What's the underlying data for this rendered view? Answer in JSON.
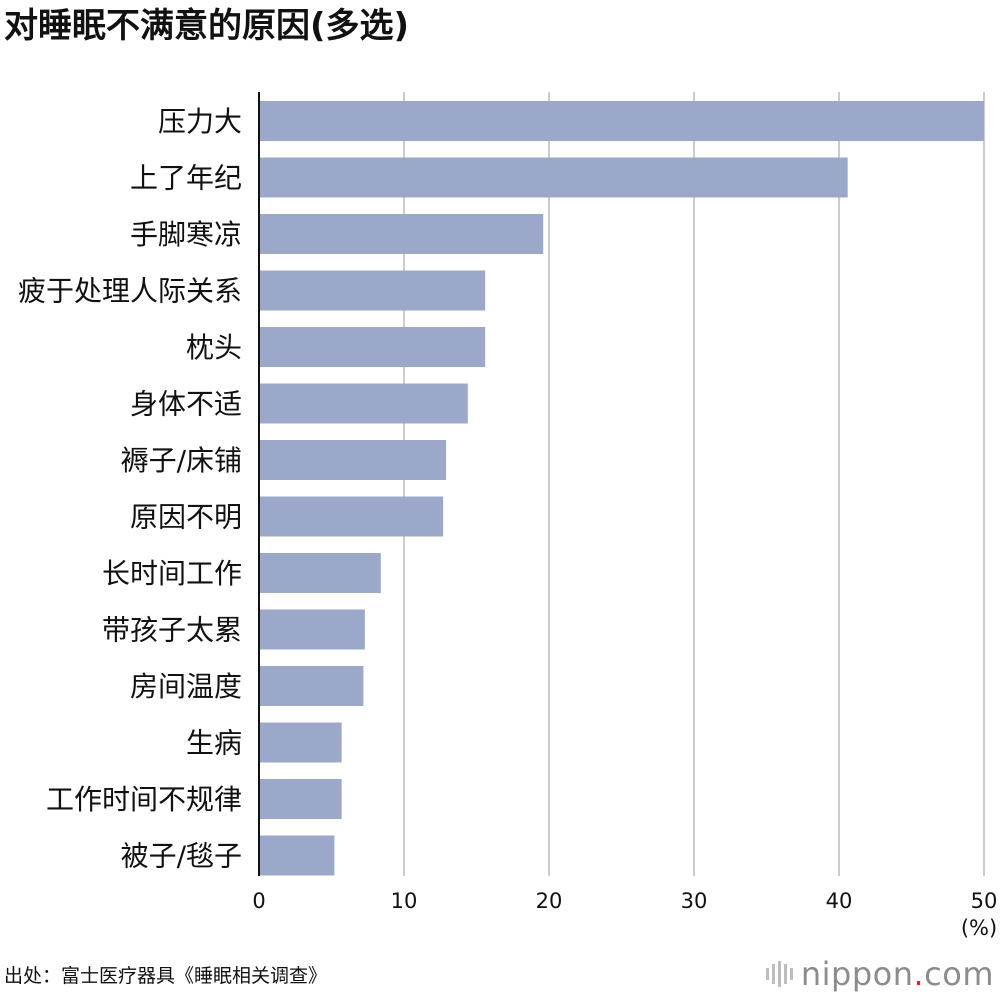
{
  "title": "对睡眠不满意的原因(多选)",
  "source": "出处：富士医疗器具《睡眠相关调查》",
  "logo": {
    "name": "nippon",
    "dot": ".",
    "suffix": "com"
  },
  "colors": {
    "bar": "#9ba8c9",
    "grid": "#cccccc",
    "axis": "#111111",
    "logo_dot": "#d7282f"
  },
  "chart_data": {
    "type": "bar",
    "orientation": "horizontal",
    "categories": [
      "压力大",
      "上了年纪",
      "手脚寒凉",
      "疲于处理人际关系",
      "枕头",
      "身体不适",
      "褥子/床铺",
      "原因不明",
      "长时间工作",
      "带孩子太累",
      "房间温度",
      "生病",
      "工作时间不规律",
      "被子/毯子"
    ],
    "values": [
      50.0,
      40.6,
      19.6,
      15.6,
      15.6,
      14.4,
      12.9,
      12.7,
      8.4,
      7.3,
      7.2,
      5.7,
      5.7,
      5.2
    ],
    "xlim": [
      0,
      50
    ],
    "xticks": [
      "0",
      "10",
      "20",
      "30",
      "40",
      "50"
    ],
    "unit": "(%)",
    "grid": true
  }
}
